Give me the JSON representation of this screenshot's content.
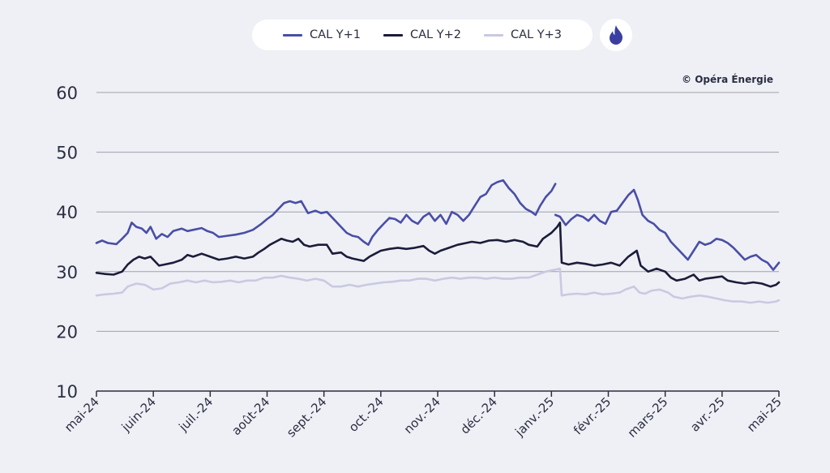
{
  "legend": {
    "items": [
      {
        "label": "CAL Y+1",
        "color": "#4a4ea6"
      },
      {
        "label": "CAL Y+2",
        "color": "#1c1c3a"
      },
      {
        "label": "CAL Y+3",
        "color": "#c9c9e2"
      }
    ],
    "icon": "flame-icon"
  },
  "copyright": "© Opéra Énergie",
  "chart_data": {
    "type": "line",
    "x_ticks": [
      "mai-24",
      "juin-24",
      "juil.-24",
      "août-24",
      "sept.-24",
      "oct.-24",
      "nov.-24",
      "déc.-24",
      "janv.-25",
      "févr.-25",
      "mars-25",
      "avr.-25",
      "mai-25"
    ],
    "y_ticks": [
      10,
      20,
      30,
      40,
      50,
      60
    ],
    "ylim": [
      10,
      60
    ],
    "grid": true,
    "legend_position": "top-center",
    "series": [
      {
        "name": "CAL Y+1",
        "color": "#4a4ea6",
        "points": [
          [
            0,
            34.8
          ],
          [
            0.1,
            35.2
          ],
          [
            0.2,
            34.8
          ],
          [
            0.35,
            34.6
          ],
          [
            0.45,
            35.5
          ],
          [
            0.55,
            36.5
          ],
          [
            0.62,
            38.2
          ],
          [
            0.7,
            37.5
          ],
          [
            0.8,
            37.2
          ],
          [
            0.88,
            36.5
          ],
          [
            0.95,
            37.5
          ],
          [
            1.05,
            35.5
          ],
          [
            1.15,
            36.3
          ],
          [
            1.25,
            35.8
          ],
          [
            1.35,
            36.8
          ],
          [
            1.5,
            37.2
          ],
          [
            1.6,
            36.8
          ],
          [
            1.7,
            37.0
          ],
          [
            1.85,
            37.3
          ],
          [
            1.95,
            36.8
          ],
          [
            2.05,
            36.5
          ],
          [
            2.15,
            35.8
          ],
          [
            2.3,
            36.0
          ],
          [
            2.45,
            36.2
          ],
          [
            2.6,
            36.5
          ],
          [
            2.75,
            37.0
          ],
          [
            2.9,
            38.0
          ],
          [
            3.0,
            38.8
          ],
          [
            3.1,
            39.5
          ],
          [
            3.2,
            40.5
          ],
          [
            3.3,
            41.5
          ],
          [
            3.4,
            41.8
          ],
          [
            3.5,
            41.5
          ],
          [
            3.6,
            41.8
          ],
          [
            3.72,
            39.8
          ],
          [
            3.85,
            40.2
          ],
          [
            3.95,
            39.8
          ],
          [
            4.05,
            40.0
          ],
          [
            4.2,
            38.5
          ],
          [
            4.3,
            37.5
          ],
          [
            4.4,
            36.5
          ],
          [
            4.5,
            36.0
          ],
          [
            4.6,
            35.8
          ],
          [
            4.7,
            35.0
          ],
          [
            4.78,
            34.5
          ],
          [
            4.85,
            35.8
          ],
          [
            4.95,
            37.0
          ],
          [
            5.05,
            38.0
          ],
          [
            5.15,
            39.0
          ],
          [
            5.25,
            38.8
          ],
          [
            5.35,
            38.2
          ],
          [
            5.45,
            39.5
          ],
          [
            5.55,
            38.5
          ],
          [
            5.65,
            38.0
          ],
          [
            5.75,
            39.2
          ],
          [
            5.85,
            39.8
          ],
          [
            5.95,
            38.5
          ],
          [
            6.05,
            39.5
          ],
          [
            6.15,
            38.0
          ],
          [
            6.25,
            40.0
          ],
          [
            6.35,
            39.5
          ],
          [
            6.45,
            38.5
          ],
          [
            6.55,
            39.5
          ],
          [
            6.65,
            41.0
          ],
          [
            6.75,
            42.5
          ],
          [
            6.85,
            43.0
          ],
          [
            6.95,
            44.5
          ],
          [
            7.05,
            45.0
          ],
          [
            7.15,
            45.3
          ],
          [
            7.25,
            44.0
          ],
          [
            7.35,
            43.0
          ],
          [
            7.45,
            41.5
          ],
          [
            7.55,
            40.5
          ],
          [
            7.65,
            40.0
          ],
          [
            7.72,
            39.5
          ],
          [
            7.8,
            41.0
          ],
          [
            7.9,
            42.5
          ],
          [
            8.0,
            43.5
          ],
          [
            8.07,
            44.7
          ],
          null,
          [
            8.07,
            39.5
          ],
          [
            8.15,
            39.2
          ],
          [
            8.25,
            37.8
          ],
          [
            8.35,
            38.8
          ],
          [
            8.45,
            39.5
          ],
          [
            8.55,
            39.2
          ],
          [
            8.65,
            38.5
          ],
          [
            8.75,
            39.5
          ],
          [
            8.85,
            38.5
          ],
          [
            8.95,
            38.0
          ],
          [
            9.05,
            40.0
          ],
          [
            9.15,
            40.2
          ],
          [
            9.25,
            41.5
          ],
          [
            9.35,
            42.8
          ],
          [
            9.45,
            43.7
          ],
          [
            9.52,
            42.0
          ],
          [
            9.6,
            39.5
          ],
          [
            9.7,
            38.5
          ],
          [
            9.8,
            38.0
          ],
          [
            9.9,
            37.0
          ],
          [
            10.0,
            36.5
          ],
          [
            10.1,
            35.0
          ],
          [
            10.2,
            34.0
          ],
          [
            10.3,
            33.0
          ],
          [
            10.4,
            32.0
          ],
          [
            10.5,
            33.5
          ],
          [
            10.6,
            35.0
          ],
          [
            10.7,
            34.5
          ],
          [
            10.8,
            34.8
          ],
          [
            10.9,
            35.5
          ],
          [
            11.0,
            35.3
          ],
          [
            11.1,
            34.8
          ],
          [
            11.2,
            34.0
          ],
          [
            11.3,
            33.0
          ],
          [
            11.4,
            32.0
          ],
          [
            11.5,
            32.5
          ],
          [
            11.6,
            32.8
          ],
          [
            11.7,
            32.0
          ],
          [
            11.8,
            31.5
          ],
          [
            11.9,
            30.3
          ],
          [
            12.0,
            31.5
          ]
        ]
      },
      {
        "name": "CAL Y+2",
        "color": "#1c1c3a",
        "points": [
          [
            0,
            29.8
          ],
          [
            0.15,
            29.6
          ],
          [
            0.3,
            29.5
          ],
          [
            0.45,
            30.0
          ],
          [
            0.55,
            31.2
          ],
          [
            0.65,
            32.0
          ],
          [
            0.75,
            32.5
          ],
          [
            0.85,
            32.2
          ],
          [
            0.95,
            32.5
          ],
          [
            1.1,
            31.0
          ],
          [
            1.2,
            31.2
          ],
          [
            1.35,
            31.5
          ],
          [
            1.5,
            32.0
          ],
          [
            1.6,
            32.8
          ],
          [
            1.7,
            32.5
          ],
          [
            1.85,
            33.0
          ],
          [
            2.0,
            32.5
          ],
          [
            2.15,
            32.0
          ],
          [
            2.3,
            32.2
          ],
          [
            2.45,
            32.5
          ],
          [
            2.6,
            32.2
          ],
          [
            2.75,
            32.5
          ],
          [
            2.85,
            33.2
          ],
          [
            2.95,
            33.8
          ],
          [
            3.05,
            34.5
          ],
          [
            3.15,
            35.0
          ],
          [
            3.25,
            35.5
          ],
          [
            3.35,
            35.2
          ],
          [
            3.45,
            35.0
          ],
          [
            3.55,
            35.5
          ],
          [
            3.65,
            34.5
          ],
          [
            3.75,
            34.2
          ],
          [
            3.9,
            34.5
          ],
          [
            4.05,
            34.5
          ],
          [
            4.15,
            33.0
          ],
          [
            4.3,
            33.2
          ],
          [
            4.4,
            32.5
          ],
          [
            4.5,
            32.2
          ],
          [
            4.6,
            32.0
          ],
          [
            4.7,
            31.8
          ],
          [
            4.8,
            32.5
          ],
          [
            4.9,
            33.0
          ],
          [
            5.0,
            33.5
          ],
          [
            5.15,
            33.8
          ],
          [
            5.3,
            34.0
          ],
          [
            5.45,
            33.8
          ],
          [
            5.6,
            34.0
          ],
          [
            5.75,
            34.3
          ],
          [
            5.85,
            33.5
          ],
          [
            5.95,
            33.0
          ],
          [
            6.05,
            33.5
          ],
          [
            6.2,
            34.0
          ],
          [
            6.35,
            34.5
          ],
          [
            6.5,
            34.8
          ],
          [
            6.6,
            35.0
          ],
          [
            6.75,
            34.8
          ],
          [
            6.9,
            35.2
          ],
          [
            7.05,
            35.3
          ],
          [
            7.2,
            35.0
          ],
          [
            7.35,
            35.3
          ],
          [
            7.5,
            35.0
          ],
          [
            7.6,
            34.5
          ],
          [
            7.75,
            34.2
          ],
          [
            7.85,
            35.5
          ],
          [
            8.0,
            36.5
          ],
          [
            8.1,
            37.5
          ],
          [
            8.15,
            38.2
          ],
          [
            8.18,
            31.5
          ],
          [
            8.3,
            31.2
          ],
          [
            8.45,
            31.5
          ],
          [
            8.6,
            31.3
          ],
          [
            8.75,
            31.0
          ],
          [
            8.9,
            31.2
          ],
          [
            9.05,
            31.5
          ],
          [
            9.2,
            31.0
          ],
          [
            9.35,
            32.5
          ],
          [
            9.5,
            33.5
          ],
          [
            9.57,
            31.0
          ],
          [
            9.7,
            30.0
          ],
          [
            9.85,
            30.5
          ],
          [
            10.0,
            30.0
          ],
          [
            10.1,
            29.0
          ],
          [
            10.2,
            28.5
          ],
          [
            10.35,
            28.8
          ],
          [
            10.5,
            29.5
          ],
          [
            10.6,
            28.5
          ],
          [
            10.7,
            28.8
          ],
          [
            10.85,
            29.0
          ],
          [
            11.0,
            29.2
          ],
          [
            11.1,
            28.5
          ],
          [
            11.25,
            28.2
          ],
          [
            11.4,
            28.0
          ],
          [
            11.55,
            28.2
          ],
          [
            11.7,
            28.0
          ],
          [
            11.85,
            27.5
          ],
          [
            11.95,
            27.8
          ],
          [
            12.0,
            28.2
          ]
        ]
      },
      {
        "name": "CAL Y+3",
        "color": "#c9c9e2",
        "points": [
          [
            0,
            26.0
          ],
          [
            0.15,
            26.2
          ],
          [
            0.3,
            26.3
          ],
          [
            0.45,
            26.5
          ],
          [
            0.55,
            27.5
          ],
          [
            0.7,
            28.0
          ],
          [
            0.85,
            27.8
          ],
          [
            1.0,
            27.0
          ],
          [
            1.15,
            27.2
          ],
          [
            1.3,
            28.0
          ],
          [
            1.45,
            28.2
          ],
          [
            1.6,
            28.5
          ],
          [
            1.75,
            28.2
          ],
          [
            1.9,
            28.5
          ],
          [
            2.05,
            28.2
          ],
          [
            2.2,
            28.3
          ],
          [
            2.35,
            28.5
          ],
          [
            2.5,
            28.2
          ],
          [
            2.65,
            28.5
          ],
          [
            2.8,
            28.5
          ],
          [
            2.95,
            29.0
          ],
          [
            3.1,
            29.0
          ],
          [
            3.25,
            29.3
          ],
          [
            3.4,
            29.0
          ],
          [
            3.55,
            28.8
          ],
          [
            3.7,
            28.5
          ],
          [
            3.85,
            28.8
          ],
          [
            4.0,
            28.5
          ],
          [
            4.15,
            27.5
          ],
          [
            4.3,
            27.5
          ],
          [
            4.45,
            27.8
          ],
          [
            4.6,
            27.5
          ],
          [
            4.75,
            27.8
          ],
          [
            4.9,
            28.0
          ],
          [
            5.05,
            28.2
          ],
          [
            5.2,
            28.3
          ],
          [
            5.35,
            28.5
          ],
          [
            5.5,
            28.5
          ],
          [
            5.65,
            28.8
          ],
          [
            5.8,
            28.8
          ],
          [
            5.95,
            28.5
          ],
          [
            6.1,
            28.8
          ],
          [
            6.25,
            29.0
          ],
          [
            6.4,
            28.8
          ],
          [
            6.55,
            29.0
          ],
          [
            6.7,
            29.0
          ],
          [
            6.85,
            28.8
          ],
          [
            7.0,
            29.0
          ],
          [
            7.15,
            28.8
          ],
          [
            7.3,
            28.8
          ],
          [
            7.45,
            29.0
          ],
          [
            7.6,
            29.0
          ],
          [
            7.75,
            29.5
          ],
          [
            7.9,
            30.0
          ],
          [
            8.0,
            30.2
          ],
          [
            8.15,
            30.5
          ],
          [
            8.18,
            26.0
          ],
          [
            8.3,
            26.2
          ],
          [
            8.45,
            26.3
          ],
          [
            8.6,
            26.2
          ],
          [
            8.75,
            26.5
          ],
          [
            8.9,
            26.2
          ],
          [
            9.05,
            26.3
          ],
          [
            9.2,
            26.5
          ],
          [
            9.3,
            27.0
          ],
          [
            9.45,
            27.5
          ],
          [
            9.55,
            26.5
          ],
          [
            9.65,
            26.3
          ],
          [
            9.75,
            26.8
          ],
          [
            9.9,
            27.0
          ],
          [
            10.05,
            26.5
          ],
          [
            10.15,
            25.8
          ],
          [
            10.3,
            25.5
          ],
          [
            10.45,
            25.8
          ],
          [
            10.6,
            26.0
          ],
          [
            10.75,
            25.8
          ],
          [
            10.9,
            25.5
          ],
          [
            11.05,
            25.2
          ],
          [
            11.2,
            25.0
          ],
          [
            11.35,
            25.0
          ],
          [
            11.5,
            24.8
          ],
          [
            11.65,
            25.0
          ],
          [
            11.8,
            24.8
          ],
          [
            11.95,
            25.0
          ],
          [
            12.0,
            25.2
          ]
        ]
      }
    ]
  }
}
